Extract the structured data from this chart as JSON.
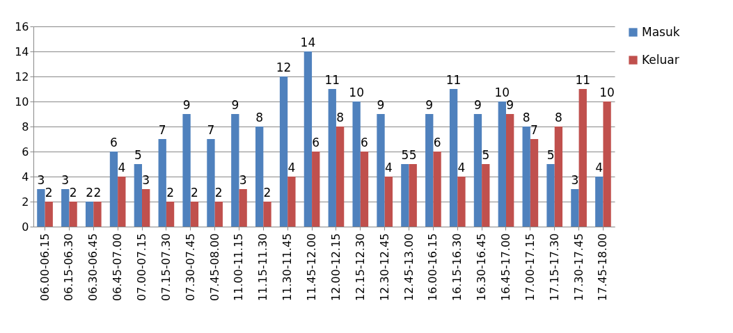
{
  "chart_data": {
    "type": "bar",
    "categories": [
      "06.00-06.15",
      "06.15-06.30",
      "06.30-06.45",
      "06.45-07.00",
      "07.00-07.15",
      "07.15-07.30",
      "07.30-07.45",
      "07.45-08.00",
      "11.00-11.15",
      "11.15-11.30",
      "11.30-11.45",
      "11.45-12.00",
      "12.00-12.15",
      "12.15-12.30",
      "12.30-12.45",
      "12.45-13.00",
      "16.00-16.15",
      "16.15-16.30",
      "16.30-16.45",
      "16.45-17.00",
      "17.00-17.15",
      "17.15-17.30",
      "17.30-17.45",
      "17.45-18.00"
    ],
    "series": [
      {
        "name": "Masuk",
        "color": "#4f81bd",
        "values": [
          3,
          3,
          2,
          6,
          5,
          7,
          9,
          7,
          9,
          8,
          12,
          14,
          11,
          10,
          9,
          5,
          9,
          11,
          9,
          10,
          8,
          5,
          3,
          4
        ]
      },
      {
        "name": "Keluar",
        "color": "#c0504d",
        "values": [
          2,
          2,
          2,
          4,
          3,
          2,
          2,
          2,
          3,
          2,
          4,
          6,
          8,
          6,
          4,
          5,
          6,
          4,
          5,
          9,
          7,
          8,
          11,
          10
        ]
      }
    ],
    "ylim": [
      0,
      16
    ],
    "yticks": [
      0,
      2,
      4,
      6,
      8,
      10,
      12,
      14,
      16
    ],
    "grid": "y",
    "legend": "right",
    "data_labels": true
  }
}
